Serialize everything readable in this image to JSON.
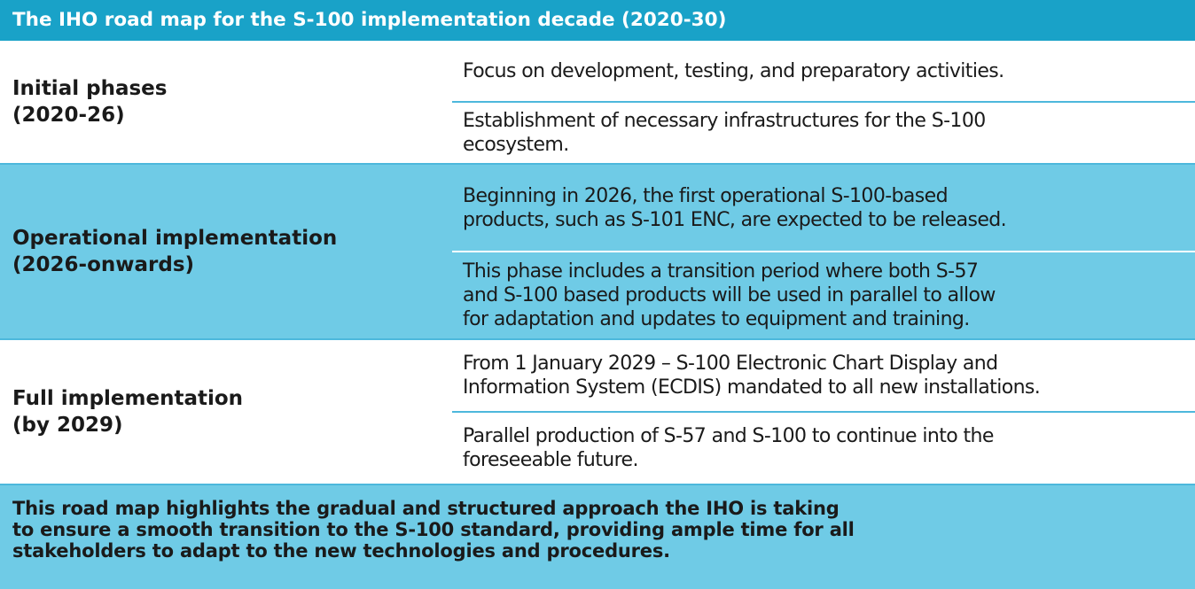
{
  "title": "The IHO road map for the S-100 implementation decade (2020-30)",
  "phases": [
    {
      "label": "Initial phases\n(2020-26)",
      "items": [
        "Focus on development, testing, and preparatory activities.",
        "Establishment of necessary infrastructures for the S-100\necosystem."
      ]
    },
    {
      "label": "Operational implementation\n(2026-onwards)",
      "items": [
        "Beginning in 2026, the first operational S-100-based\nproducts, such as S-101 ENC, are expected to be released.",
        "This phase includes a transition period where both S-57\nand S-100 based products will be used in parallel to allow\nfor adaptation and updates to equipment and training."
      ]
    },
    {
      "label": "Full implementation\n(by 2029)",
      "items": [
        "From 1 January 2029 – S-100 Electronic Chart Display and\nInformation System (ECDIS) mandated to all new installations.",
        "Parallel production of S-57 and S-100 to continue into the\nforeseeable future."
      ]
    }
  ],
  "summary": "This road map highlights the gradual and structured approach the IHO is taking\nto ensure a smooth transition to the S-100 standard, providing ample time for all\nstakeholders to adapt to the new technologies and procedures.",
  "colors": {
    "header": "#19a2c8",
    "band": "#6fcbe6",
    "divider": "#4db8dc"
  }
}
